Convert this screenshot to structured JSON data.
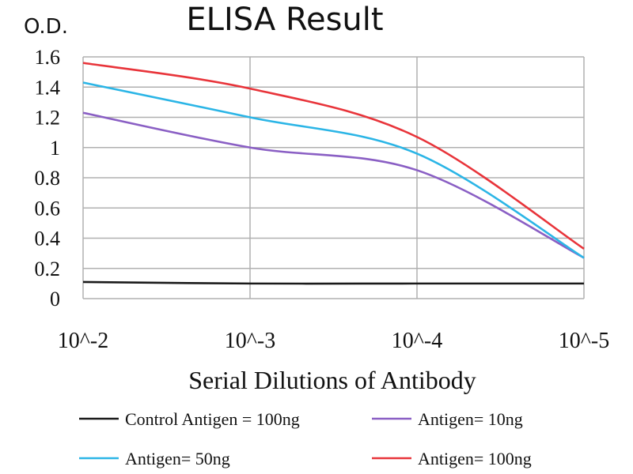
{
  "chart_data": {
    "type": "line",
    "title": "ELISA Result",
    "ylabel": "O.D.",
    "xlabel": "Serial Dilutions of Antibody",
    "categories": [
      "10^-2",
      "10^-3",
      "10^-4",
      "10^-5"
    ],
    "ylim": [
      0,
      1.6
    ],
    "yticks": [
      "0",
      "0.2",
      "0.4",
      "0.6",
      "0.8",
      "1",
      "1.2",
      "1.4",
      "1.6"
    ],
    "grid": true,
    "legend_position": "bottom",
    "series": [
      {
        "name": "Control Antigen = 100ng",
        "color": "#1a1a1a",
        "values": [
          0.11,
          0.1,
          0.1,
          0.1
        ]
      },
      {
        "name": "Antigen= 10ng",
        "color": "#8a5fc4",
        "values": [
          1.23,
          1.0,
          0.85,
          0.27
        ]
      },
      {
        "name": "Antigen= 50ng",
        "color": "#2bb5e6",
        "values": [
          1.43,
          1.2,
          0.96,
          0.27
        ]
      },
      {
        "name": "Antigen= 100ng",
        "color": "#e8343a",
        "values": [
          1.56,
          1.39,
          1.07,
          0.33
        ]
      }
    ]
  }
}
